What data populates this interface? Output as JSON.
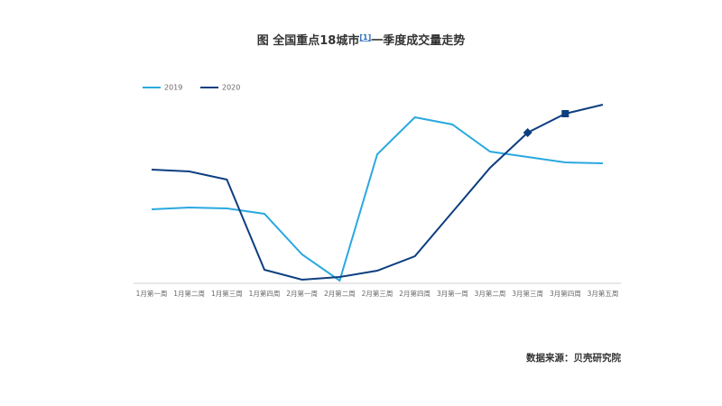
{
  "chart_data": {
    "type": "line",
    "title": "图 全国重点18城市",
    "title_note": "[1]",
    "title_rest": "一季度成交量走势",
    "source": "数据来源：贝壳研究院",
    "categories": [
      "1月第一周",
      "1月第二周",
      "1月第三周",
      "1月第四周",
      "2月第一周",
      "2月第二周",
      "2月第三周",
      "2月第四周",
      "3月第一周",
      "3月第二周",
      "3月第三周",
      "3月第四周",
      "3月第五周"
    ],
    "series": [
      {
        "name": "2019",
        "color": "#29a9e0",
        "values": [
          40.5,
          41.5,
          41,
          38,
          15.5,
          1,
          71,
          91.5,
          87.5,
          72.5,
          69.5,
          66.5,
          66
        ]
      },
      {
        "name": "2020",
        "color": "#0d3f80",
        "values": [
          62.5,
          61.5,
          57,
          7,
          1.5,
          3,
          6.5,
          14.5,
          39,
          63.5,
          83,
          93.5,
          98.5
        ],
        "markers": [
          null,
          null,
          null,
          null,
          null,
          null,
          null,
          null,
          null,
          null,
          "diamond",
          "square",
          null
        ]
      }
    ],
    "ylim": [
      0,
      100
    ],
    "legend": "top-left"
  }
}
